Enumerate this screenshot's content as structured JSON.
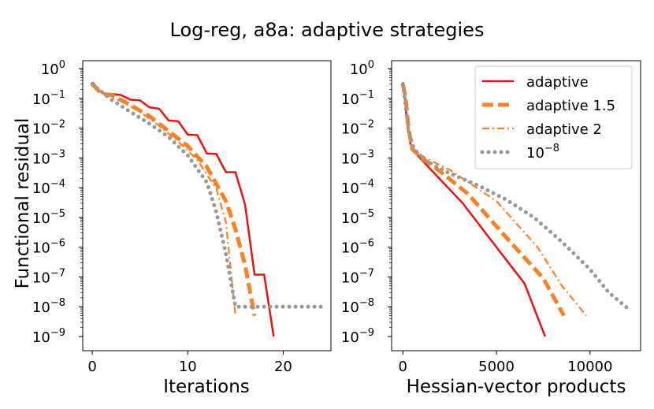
{
  "chart_data": {
    "type": "line",
    "title": "Log-reg, a8a: adaptive strategies",
    "ylabel": "Functional residual",
    "yscale": "log",
    "ylim": [
      1e-09,
      1
    ],
    "y_tick_labels": [
      {
        "base": "10",
        "exp": "0"
      },
      {
        "base": "10",
        "exp": "−1"
      },
      {
        "base": "10",
        "exp": "−2"
      },
      {
        "base": "10",
        "exp": "−3"
      },
      {
        "base": "10",
        "exp": "−4"
      },
      {
        "base": "10",
        "exp": "−5"
      },
      {
        "base": "10",
        "exp": "−6"
      },
      {
        "base": "10",
        "exp": "−7"
      },
      {
        "base": "10",
        "exp": "−8"
      },
      {
        "base": "10",
        "exp": "−9"
      }
    ],
    "legend": {
      "placement": "top-right of right panel",
      "entries": [
        {
          "label": "adaptive",
          "label_exp": ""
        },
        {
          "label": "adaptive 1.5",
          "label_exp": ""
        },
        {
          "label": "adaptive 2",
          "label_exp": ""
        },
        {
          "label": "10",
          "label_exp": "−8"
        }
      ]
    },
    "panels": [
      {
        "xlabel": "Iterations",
        "xlim": [
          -1,
          25
        ],
        "xticks": [
          0,
          10,
          20
        ],
        "xtick_labels": [
          "0",
          "10",
          "20"
        ],
        "series": [
          {
            "name": "adaptive",
            "color": "#ee1111",
            "style": "solid",
            "points": [
              [
                0,
                0.35
              ],
              [
                1,
                0.15
              ],
              [
                2,
                0.14
              ],
              [
                3,
                0.13
              ],
              [
                4,
                0.09
              ],
              [
                5,
                0.085
              ],
              [
                6,
                0.05
              ],
              [
                7,
                0.045
              ],
              [
                8,
                0.018
              ],
              [
                9,
                0.017
              ],
              [
                10,
                0.006
              ],
              [
                11,
                0.0058
              ],
              [
                12,
                0.0014
              ],
              [
                13,
                0.00135
              ],
              [
                14,
                0.00033
              ],
              [
                15,
                0.00033
              ],
              [
                16,
                2.7e-05
              ],
              [
                17,
                1.2e-07
              ],
              [
                18,
                1.2e-07
              ],
              [
                19,
                1e-09
              ]
            ]
          },
          {
            "name": "adaptive 1.5",
            "color": "#ff8020",
            "style": "dashed",
            "points": [
              [
                0,
                0.3
              ],
              [
                1,
                0.14
              ],
              [
                2,
                0.13
              ],
              [
                4,
                0.06
              ],
              [
                6,
                0.025
              ],
              [
                8,
                0.008
              ],
              [
                10,
                0.0025
              ],
              [
                12,
                0.0005
              ],
              [
                14,
                3.5e-05
              ],
              [
                15,
                4e-06
              ],
              [
                16,
                2.5e-07
              ],
              [
                17,
                5e-09
              ]
            ]
          },
          {
            "name": "adaptive 2",
            "color": "#ff8020",
            "style": "dashdot",
            "points": [
              [
                0,
                0.3
              ],
              [
                1,
                0.15
              ],
              [
                3,
                0.08
              ],
              [
                5,
                0.035
              ],
              [
                7,
                0.012
              ],
              [
                9,
                0.0035
              ],
              [
                11,
                0.00085
              ],
              [
                13,
                9e-05
              ],
              [
                14,
                7e-06
              ],
              [
                15,
                5e-09
              ]
            ]
          },
          {
            "name": "1e-8",
            "color": "#999999",
            "style": "dotted",
            "points": [
              [
                0,
                0.3
              ],
              [
                2,
                0.09
              ],
              [
                4,
                0.035
              ],
              [
                6,
                0.014
              ],
              [
                8,
                0.005
              ],
              [
                10,
                0.0012
              ],
              [
                12,
                0.00015
              ],
              [
                13,
                1.5e-05
              ],
              [
                14,
                6e-07
              ],
              [
                15,
                1e-08
              ],
              [
                16,
                1e-08
              ],
              [
                18,
                1e-08
              ],
              [
                20,
                1e-08
              ],
              [
                22,
                1e-08
              ],
              [
                24,
                1e-08
              ]
            ]
          }
        ]
      },
      {
        "xlabel": "Hessian-vector products",
        "xlim": [
          -600,
          12700
        ],
        "xticks": [
          0,
          5000,
          10000
        ],
        "xtick_labels": [
          "0",
          "5000",
          "10000"
        ],
        "series": [
          {
            "name": "adaptive",
            "color": "#ee1111",
            "style": "solid",
            "points": [
              [
                0,
                0.35
              ],
              [
                100,
                0.15
              ],
              [
                200,
                0.02
              ],
              [
                400,
                0.003
              ],
              [
                800,
                0.0012
              ],
              [
                1500,
                0.0004
              ],
              [
                3200,
                3e-05
              ],
              [
                5000,
                1e-06
              ],
              [
                6500,
                6e-08
              ],
              [
                7600,
                1e-09
              ]
            ]
          },
          {
            "name": "adaptive 1.5",
            "color": "#ff8020",
            "style": "dashed",
            "points": [
              [
                0,
                0.3
              ],
              [
                150,
                0.1
              ],
              [
                300,
                0.01
              ],
              [
                500,
                0.002
              ],
              [
                1000,
                0.001
              ],
              [
                2000,
                0.00035
              ],
              [
                3500,
                6e-05
              ],
              [
                5500,
                2.2e-06
              ],
              [
                7500,
                9e-08
              ],
              [
                8600,
                5e-09
              ]
            ]
          },
          {
            "name": "adaptive 2",
            "color": "#ff8020",
            "style": "dashdot",
            "points": [
              [
                0,
                0.3
              ],
              [
                150,
                0.1
              ],
              [
                300,
                0.01
              ],
              [
                500,
                0.002
              ],
              [
                1200,
                0.001
              ],
              [
                2500,
                0.0004
              ],
              [
                5000,
                3.5e-05
              ],
              [
                7200,
                1e-06
              ],
              [
                8500,
                5e-08
              ],
              [
                9800,
                5e-09
              ]
            ]
          },
          {
            "name": "1e-8",
            "color": "#999999",
            "style": "dotted",
            "points": [
              [
                0,
                0.3
              ],
              [
                100,
                0.1
              ],
              [
                300,
                0.008
              ],
              [
                600,
                0.002
              ],
              [
                1200,
                0.0008
              ],
              [
                2500,
                0.0003
              ],
              [
                4000,
                0.00012
              ],
              [
                5500,
                4e-05
              ],
              [
                7000,
                1e-05
              ],
              [
                8500,
                1.5e-06
              ],
              [
                10000,
                1.8e-07
              ],
              [
                11000,
                3e-08
              ],
              [
                12100,
                8e-09
              ]
            ]
          }
        ]
      }
    ]
  }
}
